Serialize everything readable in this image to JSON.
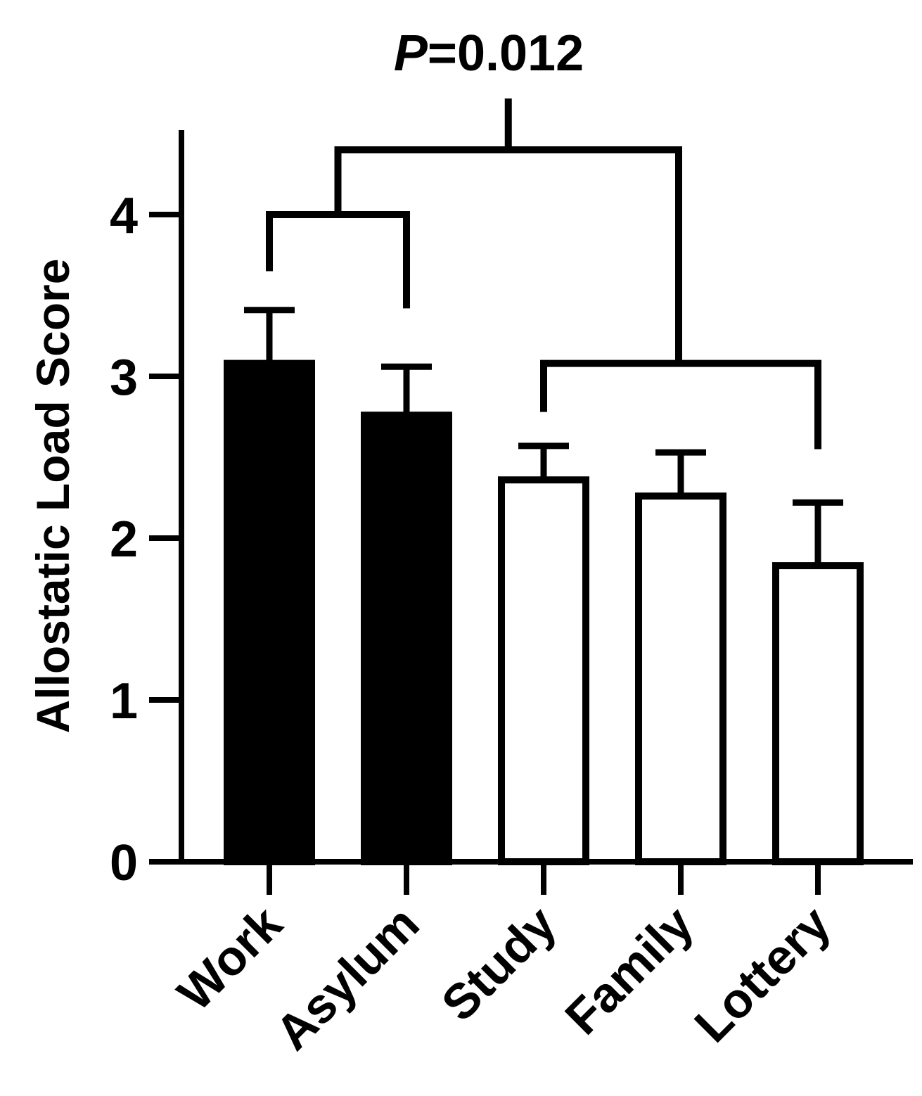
{
  "chart_data": {
    "type": "bar",
    "categories": [
      "Work",
      "Asylum",
      "Study",
      "Family",
      "Lottery"
    ],
    "series": [
      {
        "values": [
          3.08,
          2.76,
          2.36,
          2.26,
          1.83
        ],
        "error_upper": [
          0.33,
          0.3,
          0.21,
          0.27,
          0.39
        ],
        "fills": [
          "#000000",
          "#000000",
          "#ffffff",
          "#ffffff",
          "#ffffff"
        ]
      }
    ],
    "xlabel": "",
    "ylabel": "Allostatic Load Score",
    "ylim": [
      0,
      4.5
    ],
    "yticks": [
      0,
      1,
      2,
      3,
      4
    ],
    "grid": false,
    "annotation": {
      "p_label": "P",
      "p_value": "=0.012",
      "groups": [
        [
          "Work",
          "Asylum"
        ],
        [
          "Study",
          "Family",
          "Lottery"
        ]
      ]
    }
  }
}
